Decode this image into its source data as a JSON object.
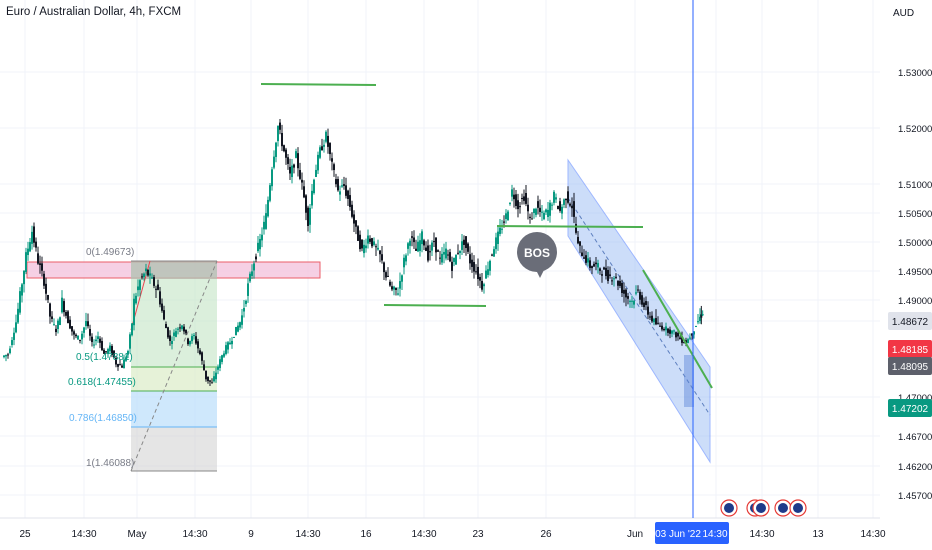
{
  "header": {
    "symbol_title": "Euro / Australian Dollar, 4h, FXCM",
    "currency": "AUD"
  },
  "colors": {
    "up": "#089981",
    "down": "#131722",
    "grid": "#f0f3fa",
    "axis_text": "#131722",
    "price_red": "#f23645",
    "price_green": "#089981",
    "price_dark": "#5d606b",
    "price_gray": "#e0e3eb",
    "crosshair": "#2962ff",
    "date_badge": "#2962ff",
    "green_line": "#4caf50",
    "channel_fill": "#90b4f3",
    "pink_zone": "#f5c8e0",
    "pink_border": "#e84350"
  },
  "chart_data": {
    "type": "candlestick",
    "title": "Euro / Australian Dollar, 4h, FXCM",
    "y_unit": "AUD",
    "ylim": [
      1.4545,
      1.5355
    ],
    "y_ticks": [
      "1.53000",
      "1.52000",
      "1.51000",
      "1.50500",
      "1.50000",
      "1.49500",
      "1.49000",
      "1.48500",
      "1.47000",
      "1.46700",
      "1.46200",
      "1.45700"
    ],
    "x_ticks": [
      "25",
      "14:30",
      "May",
      "14:30",
      "9",
      "14:30",
      "16",
      "14:30",
      "23",
      "26",
      "Jun",
      "03 Jun '22",
      "14:30",
      "13",
      "14:30"
    ],
    "price_labels": {
      "current": "1.48672",
      "red": "1.48185",
      "dark": "1.48095",
      "green": "1.47202"
    },
    "crosshair_date": "03 Jun '22",
    "crosshair_time": "14:30",
    "fib_levels": [
      {
        "ratio": "0",
        "label": "0(1.49673)",
        "price": 1.49673
      },
      {
        "ratio": "0.5",
        "label": "0.5(1.47881)",
        "price": 1.47881
      },
      {
        "ratio": "0.618",
        "label": "0.618(1.47455)",
        "price": 1.47455
      },
      {
        "ratio": "0.786",
        "label": "0.786(1.46850)",
        "price": 1.4685
      },
      {
        "ratio": "1",
        "label": "1(1.46088)",
        "price": 1.46088
      }
    ],
    "annotations": [
      "BOS"
    ],
    "candles_summary": {
      "start_price": 1.473,
      "high": 1.5275,
      "low": 1.4595,
      "last": 1.4867
    }
  }
}
